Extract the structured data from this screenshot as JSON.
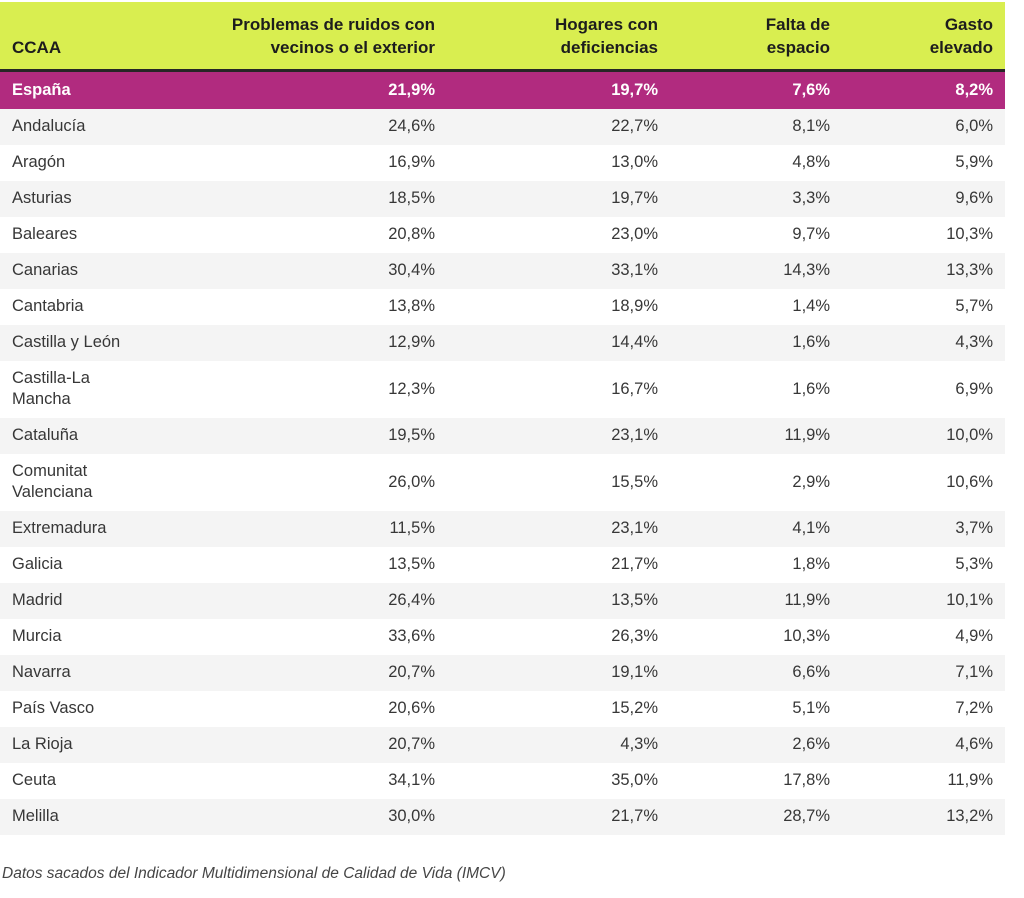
{
  "colors": {
    "header_bg": "#d9ee50",
    "highlight_bg": "#b12b7f",
    "stripe_bg": "#f4f4f4",
    "divider": "#262626"
  },
  "chart_data": {
    "type": "table",
    "title": "",
    "columns": [
      {
        "label": "CCAA"
      },
      {
        "label": "Problemas de ruidos con\nvecinos o el exterior"
      },
      {
        "label": "Hogares con\ndeficiencias"
      },
      {
        "label": "Falta de\nespacio"
      },
      {
        "label": "Gasto\nelevado"
      }
    ],
    "highlight_row": {
      "label": "España",
      "values": [
        "21,9%",
        "19,7%",
        "7,6%",
        "8,2%"
      ]
    },
    "rows": [
      {
        "label": "Andalucía",
        "values": [
          "24,6%",
          "22,7%",
          "8,1%",
          "6,0%"
        ]
      },
      {
        "label": "Aragón",
        "values": [
          "16,9%",
          "13,0%",
          "4,8%",
          "5,9%"
        ]
      },
      {
        "label": "Asturias",
        "values": [
          "18,5%",
          "19,7%",
          "3,3%",
          "9,6%"
        ]
      },
      {
        "label": "Baleares",
        "values": [
          "20,8%",
          "23,0%",
          "9,7%",
          "10,3%"
        ]
      },
      {
        "label": "Canarias",
        "values": [
          "30,4%",
          "33,1%",
          "14,3%",
          "13,3%"
        ]
      },
      {
        "label": "Cantabria",
        "values": [
          "13,8%",
          "18,9%",
          "1,4%",
          "5,7%"
        ]
      },
      {
        "label": "Castilla y León",
        "values": [
          "12,9%",
          "14,4%",
          "1,6%",
          "4,3%"
        ]
      },
      {
        "label": "Castilla-La\nMancha",
        "values": [
          "12,3%",
          "16,7%",
          "1,6%",
          "6,9%"
        ]
      },
      {
        "label": "Cataluña",
        "values": [
          "19,5%",
          "23,1%",
          "11,9%",
          "10,0%"
        ]
      },
      {
        "label": "Comunitat\nValenciana",
        "values": [
          "26,0%",
          "15,5%",
          "2,9%",
          "10,6%"
        ]
      },
      {
        "label": "Extremadura",
        "values": [
          "11,5%",
          "23,1%",
          "4,1%",
          "3,7%"
        ]
      },
      {
        "label": "Galicia",
        "values": [
          "13,5%",
          "21,7%",
          "1,8%",
          "5,3%"
        ]
      },
      {
        "label": "Madrid",
        "values": [
          "26,4%",
          "13,5%",
          "11,9%",
          "10,1%"
        ]
      },
      {
        "label": "Murcia",
        "values": [
          "33,6%",
          "26,3%",
          "10,3%",
          "4,9%"
        ]
      },
      {
        "label": "Navarra",
        "values": [
          "20,7%",
          "19,1%",
          "6,6%",
          "7,1%"
        ]
      },
      {
        "label": "País Vasco",
        "values": [
          "20,6%",
          "15,2%",
          "5,1%",
          "7,2%"
        ]
      },
      {
        "label": "La Rioja",
        "values": [
          "20,7%",
          "4,3%",
          "2,6%",
          "4,6%"
        ]
      },
      {
        "label": "Ceuta",
        "values": [
          "34,1%",
          "35,0%",
          "17,8%",
          "11,9%"
        ]
      },
      {
        "label": "Melilla",
        "values": [
          "30,0%",
          "21,7%",
          "28,7%",
          "13,2%"
        ]
      }
    ],
    "footnote": "Datos sacados del Indicador Multidimensional de Calidad de Vida (IMCV)"
  }
}
